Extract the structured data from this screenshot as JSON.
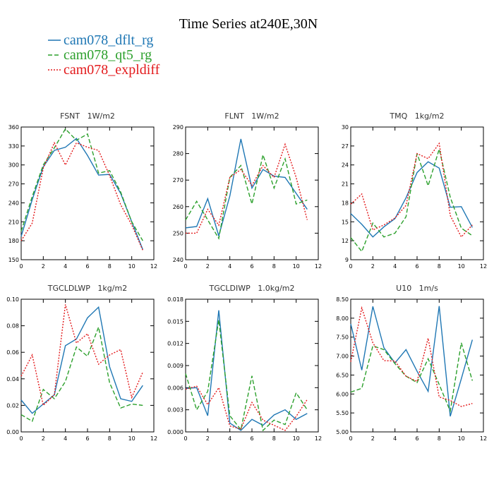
{
  "title": "Time Series at240E,30N",
  "chart_data": [
    {
      "type": "line",
      "title": "FSNT   1W/m2",
      "x": [
        0,
        1,
        2,
        3,
        4,
        5,
        6,
        7,
        8,
        9,
        10,
        11
      ],
      "xlim": [
        0,
        12
      ],
      "xticks": [
        0,
        2,
        4,
        6,
        8,
        10,
        12
      ],
      "ylim": [
        150,
        360
      ],
      "yticks": [
        150,
        180,
        210,
        240,
        270,
        300,
        330,
        360
      ],
      "series": [
        {
          "name": "cam078_dflt_rg",
          "color": "#1f77b4",
          "values": [
            187,
            245,
            297,
            323,
            328,
            342,
            315,
            284,
            285,
            255,
            210,
            166
          ]
        },
        {
          "name": "cam078_qt5_rg",
          "color": "#2ca02c",
          "values": [
            195,
            250,
            300,
            327,
            357,
            339,
            349,
            287,
            291,
            257,
            210,
            180
          ]
        },
        {
          "name": "cam078_expldiff",
          "color": "#e31a1c",
          "values": [
            180,
            208,
            295,
            335,
            300,
            335,
            328,
            323,
            283,
            237,
            205,
            165
          ]
        }
      ]
    },
    {
      "type": "line",
      "title": "FLNT   1W/m2",
      "x": [
        0,
        1,
        2,
        3,
        4,
        5,
        6,
        7,
        8,
        9,
        10,
        11
      ],
      "xlim": [
        0,
        12
      ],
      "xticks": [
        0,
        2,
        4,
        6,
        8,
        10,
        12
      ],
      "ylim": [
        240,
        290
      ],
      "yticks": [
        240,
        250,
        260,
        270,
        280,
        290
      ],
      "series": [
        {
          "color": "#1f77b4",
          "values": [
            252,
            252.5,
            263,
            249,
            264,
            285.5,
            267,
            274,
            271.5,
            271,
            265,
            259
          ]
        },
        {
          "color": "#2ca02c",
          "values": [
            255,
            262,
            255,
            248,
            271,
            275.5,
            261,
            279.5,
            267,
            278,
            261,
            262.5
          ]
        },
        {
          "color": "#e31a1c",
          "values": [
            250,
            250,
            259,
            253,
            271,
            274,
            268,
            275.5,
            271,
            283.5,
            271,
            255
          ]
        }
      ]
    },
    {
      "type": "line",
      "title": "TMQ   1kg/m2",
      "x": [
        0,
        1,
        2,
        3,
        4,
        5,
        6,
        7,
        8,
        9,
        10,
        11
      ],
      "xlim": [
        0,
        12
      ],
      "xticks": [
        0,
        2,
        4,
        6,
        8,
        10,
        12
      ],
      "ylim": [
        9,
        30
      ],
      "yticks": [
        9,
        12,
        15,
        18,
        21,
        24,
        27,
        30
      ],
      "series": [
        {
          "color": "#1f77b4",
          "values": [
            16.3,
            14.6,
            12.6,
            14.2,
            15.5,
            18.8,
            22.8,
            24.5,
            23.5,
            17.3,
            17.4,
            14.1
          ]
        },
        {
          "color": "#2ca02c",
          "values": [
            12.5,
            10.3,
            14.8,
            12.6,
            13.2,
            15.8,
            25.8,
            20.7,
            26.5,
            18.9,
            14.0,
            12.8
          ]
        },
        {
          "color": "#e31a1c",
          "values": [
            17.8,
            19.4,
            13.7,
            14.5,
            15.6,
            17.6,
            25.8,
            25.0,
            27.4,
            16.0,
            12.6,
            14.5
          ]
        }
      ]
    },
    {
      "type": "line",
      "title": "TGCLDLWP   1kg/m2",
      "x": [
        0,
        1,
        2,
        3,
        4,
        5,
        6,
        7,
        8,
        9,
        10,
        11
      ],
      "xlim": [
        0,
        12
      ],
      "xticks": [
        0,
        2,
        4,
        6,
        8,
        10,
        12
      ],
      "ylim": [
        0,
        0.1
      ],
      "yticks": [
        {
          "value": 0,
          "label": "0.00"
        },
        {
          "value": 0.02,
          "label": "0.02"
        },
        {
          "value": 0.04,
          "label": "0.04"
        },
        {
          "value": 0.06,
          "label": "0.06"
        },
        {
          "value": 0.08,
          "label": "0.08"
        },
        {
          "value": 0.1,
          "label": "0.10"
        }
      ],
      "series": [
        {
          "color": "#1f77b4",
          "values": [
            0.024,
            0.014,
            0.021,
            0.028,
            0.065,
            0.07,
            0.086,
            0.094,
            0.049,
            0.025,
            0.023,
            0.035
          ]
        },
        {
          "color": "#2ca02c",
          "values": [
            0.013,
            0.008,
            0.032,
            0.025,
            0.038,
            0.064,
            0.057,
            0.079,
            0.037,
            0.018,
            0.021,
            0.02
          ]
        },
        {
          "color": "#e31a1c",
          "values": [
            0.042,
            0.058,
            0.02,
            0.028,
            0.096,
            0.067,
            0.074,
            0.051,
            0.058,
            0.062,
            0.026,
            0.045
          ]
        }
      ]
    },
    {
      "type": "line",
      "title": "TGCLDIWP   1.0kg/m2",
      "x": [
        0,
        1,
        2,
        3,
        4,
        5,
        6,
        7,
        8,
        9,
        10,
        11
      ],
      "xlim": [
        0,
        12
      ],
      "xticks": [
        0,
        2,
        4,
        6,
        8,
        10,
        12
      ],
      "ylim": [
        0,
        0.018
      ],
      "yticks": [
        {
          "value": 0,
          "label": "0.000"
        },
        {
          "value": 0.003,
          "label": "0.003"
        },
        {
          "value": 0.006,
          "label": "0.006"
        },
        {
          "value": 0.009,
          "label": "0.009"
        },
        {
          "value": 0.012,
          "label": "0.012"
        },
        {
          "value": 0.015,
          "label": "0.015"
        },
        {
          "value": 0.018,
          "label": "0.018"
        }
      ],
      "series": [
        {
          "color": "#1f77b4",
          "values": [
            0.0059,
            0.006,
            0.0022,
            0.0165,
            0.0012,
            0.0002,
            0.0017,
            0.0009,
            0.0023,
            0.003,
            0.0017,
            0.0025
          ]
        },
        {
          "color": "#2ca02c",
          "values": [
            0.0079,
            0.003,
            0.0055,
            0.0152,
            0.0022,
            0.0003,
            0.0076,
            0.0002,
            0.0016,
            0.001,
            0.0053,
            0.003
          ]
        },
        {
          "color": "#e31a1c",
          "values": [
            0.0058,
            0.0062,
            0.0037,
            0.006,
            0.0008,
            0.0004,
            0.004,
            0.0016,
            0.0009,
            0.0002,
            0.0021,
            0.0044
          ]
        }
      ]
    },
    {
      "type": "line",
      "title": "U10   1m/s",
      "x": [
        0,
        1,
        2,
        3,
        4,
        5,
        6,
        7,
        8,
        9,
        10,
        11
      ],
      "xlim": [
        0,
        12
      ],
      "xticks": [
        0,
        2,
        4,
        6,
        8,
        10,
        12
      ],
      "ylim": [
        5,
        8.5
      ],
      "yticks": [
        {
          "value": 5,
          "label": "5.00"
        },
        {
          "value": 5.5,
          "label": "5.50"
        },
        {
          "value": 6,
          "label": "6.00"
        },
        {
          "value": 6.5,
          "label": "6.50"
        },
        {
          "value": 7,
          "label": "7.00"
        },
        {
          "value": 7.5,
          "label": "7.50"
        },
        {
          "value": 8,
          "label": "8.00"
        },
        {
          "value": 8.5,
          "label": "8.50"
        }
      ],
      "series": [
        {
          "color": "#1f77b4",
          "values": [
            7.85,
            6.63,
            8.31,
            7.22,
            6.82,
            7.17,
            6.6,
            6.07,
            8.32,
            5.41,
            6.4,
            7.43
          ]
        },
        {
          "color": "#2ca02c",
          "values": [
            6.05,
            6.15,
            7.27,
            7.17,
            6.8,
            6.47,
            6.3,
            6.93,
            6.25,
            5.55,
            7.35,
            6.35
          ]
        },
        {
          "color": "#e31a1c",
          "values": [
            6.85,
            8.27,
            7.35,
            6.88,
            6.87,
            6.47,
            6.33,
            7.47,
            5.92,
            5.83,
            5.67,
            5.75
          ]
        }
      ]
    }
  ]
}
